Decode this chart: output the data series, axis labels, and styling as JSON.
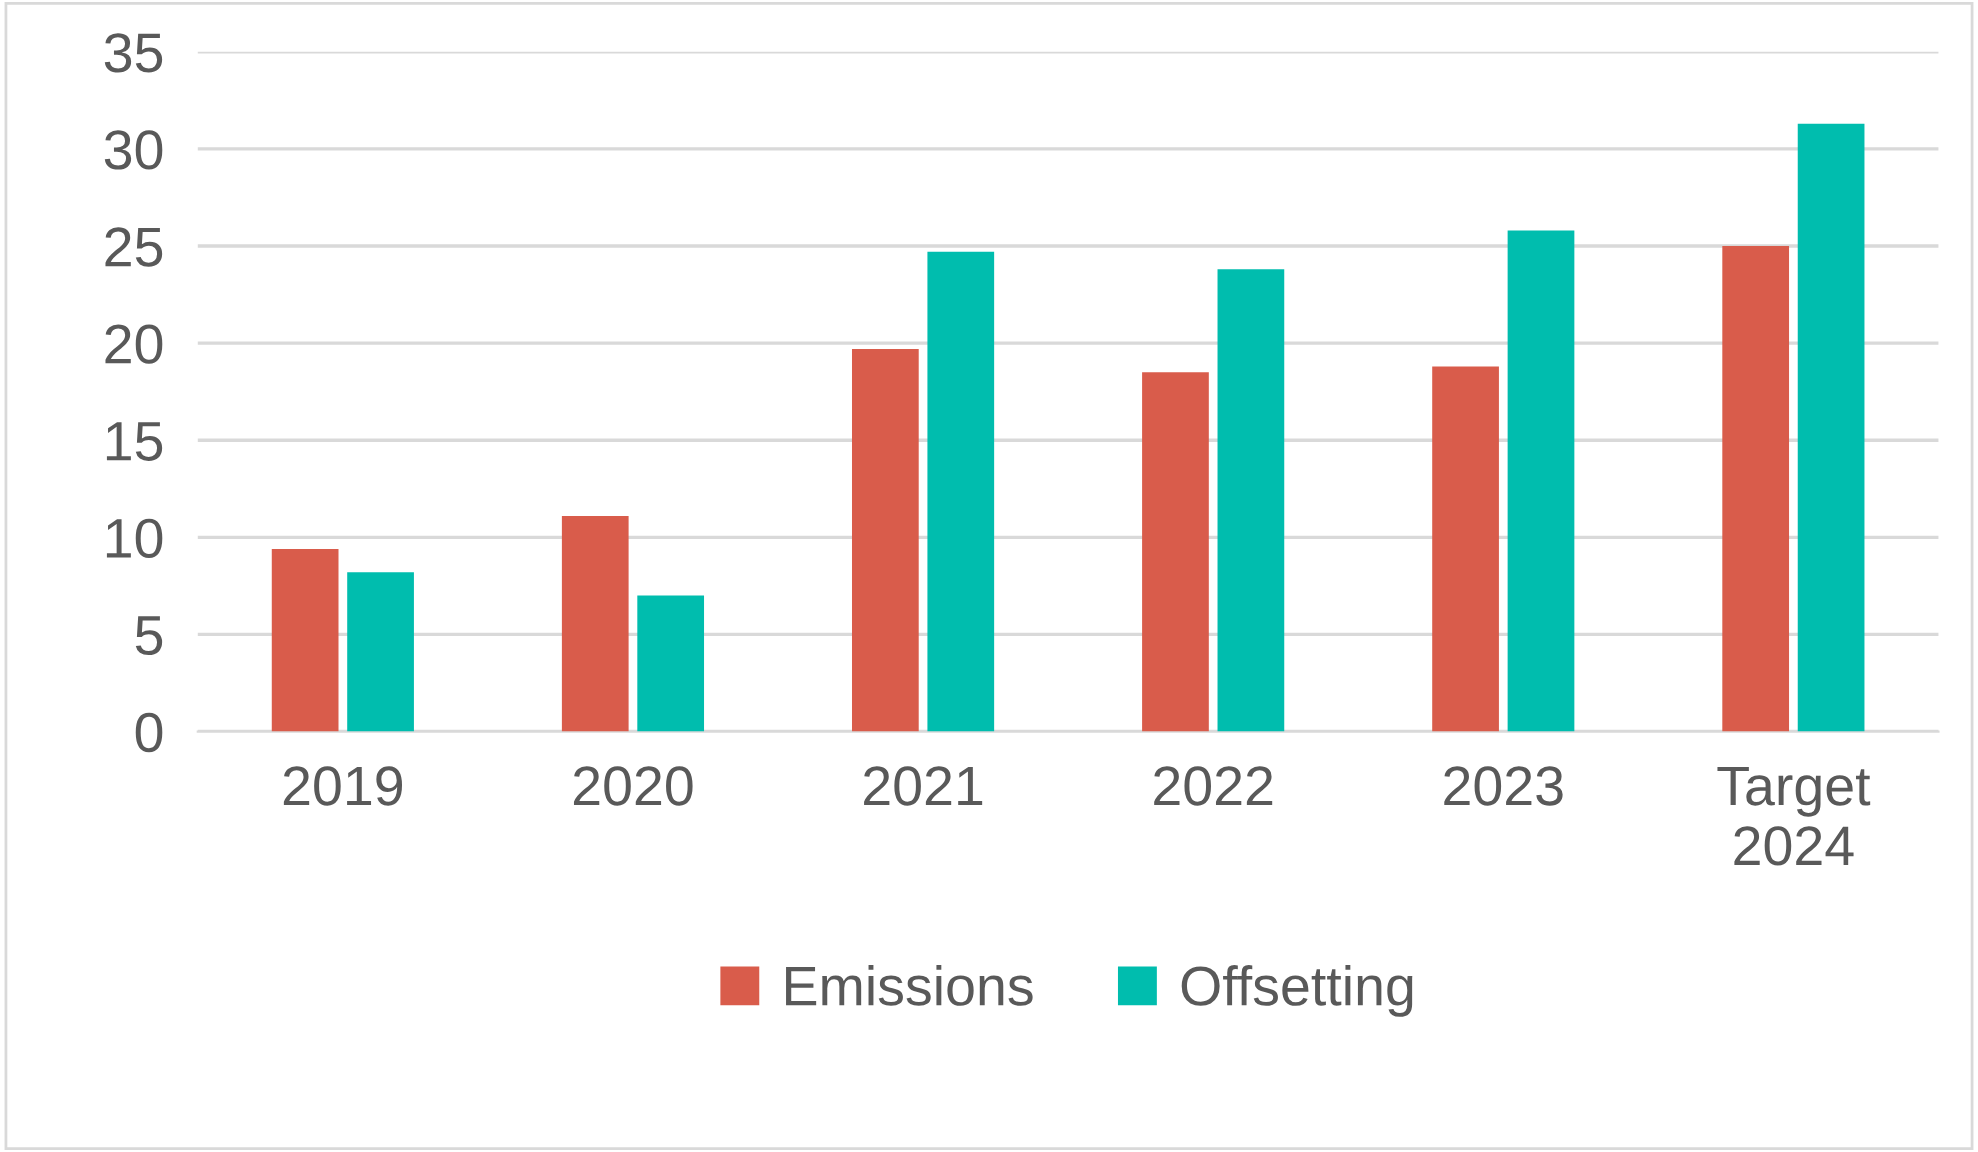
{
  "chart_data": {
    "type": "bar",
    "categories": [
      "2019",
      "2020",
      "2021",
      "2022",
      "2023",
      "Target\n2024"
    ],
    "series": [
      {
        "name": "Emissions",
        "color": "#d95c4b",
        "values": [
          9.4,
          11.1,
          19.7,
          18.5,
          18.8,
          25.0
        ]
      },
      {
        "name": "Offsetting",
        "color": "#00bdae",
        "values": [
          8.2,
          7.0,
          24.7,
          23.8,
          25.8,
          31.3
        ]
      }
    ],
    "ylim": [
      0,
      35
    ],
    "yticks": [
      0,
      5,
      10,
      15,
      20,
      25,
      30,
      35
    ],
    "grid": "y",
    "legend": "bottom"
  }
}
